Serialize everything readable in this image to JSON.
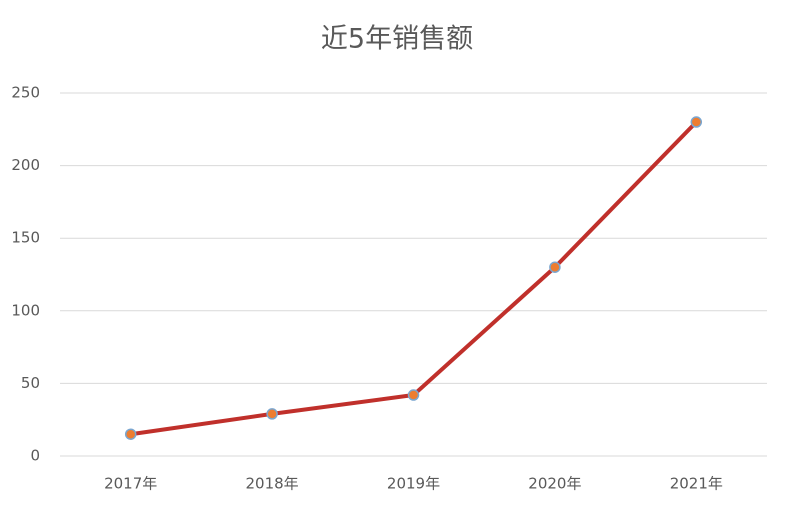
{
  "chart_data": {
    "type": "line",
    "title": "近5年销售额",
    "categories": [
      "2017年",
      "2018年",
      "2019年",
      "2020年",
      "2021年"
    ],
    "values": [
      15,
      29,
      42,
      130,
      230
    ],
    "color": "#c0302b",
    "marker_color": "#ed7d31",
    "marker_edge_color": "#7aa6d0",
    "ylim": [
      0,
      250
    ],
    "yticks": [
      0,
      50,
      100,
      150,
      200,
      250
    ],
    "grid": true
  }
}
